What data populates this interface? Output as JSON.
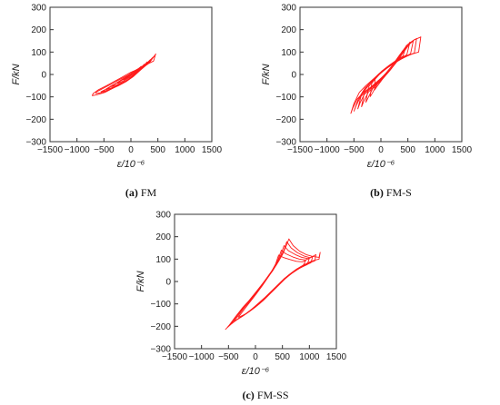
{
  "figure": {
    "captions": [
      {
        "letter": "(a)",
        "text": " FM"
      },
      {
        "letter": "(b)",
        "text": " FM-S"
      },
      {
        "letter": "(c)",
        "text": " FM-SS"
      }
    ]
  },
  "chart_data": [
    {
      "type": "line",
      "title": "",
      "caption": "(a) FM",
      "xlabel": "ε/10⁻⁶",
      "ylabel": "F/kN",
      "xlim": [
        -1500,
        1500
      ],
      "ylim": [
        -300,
        300
      ],
      "xticks": [
        "−1500",
        "−1000",
        "−500",
        "0",
        "500",
        "1000",
        "1500"
      ],
      "yticks": [
        "300",
        "200",
        "100",
        "0",
        "−100",
        "−200",
        "−300"
      ],
      "color": "#ff1a1a",
      "series": [
        {
          "x": [
            -720,
            -620,
            -480,
            -340,
            -200,
            -60,
            60,
            200,
            330,
            430,
            460,
            420,
            300,
            150,
            0,
            -150,
            -300,
            -450,
            -600,
            -700,
            -720
          ],
          "y": [
            -95,
            -90,
            -80,
            -62,
            -45,
            -25,
            -2,
            30,
            55,
            80,
            92,
            60,
            45,
            25,
            10,
            -10,
            -30,
            -50,
            -68,
            -85,
            -95
          ]
        },
        {
          "x": [
            -650,
            -520,
            -380,
            -230,
            -90,
            40,
            170,
            300,
            400,
            430,
            360,
            220,
            80,
            -70,
            -230,
            -380,
            -520,
            -640,
            -650
          ],
          "y": [
            -85,
            -80,
            -66,
            -50,
            -32,
            -10,
            18,
            45,
            72,
            82,
            58,
            38,
            18,
            -5,
            -25,
            -45,
            -63,
            -78,
            -85
          ]
        },
        {
          "x": [
            -560,
            -430,
            -300,
            -160,
            -30,
            90,
            220,
            340,
            400,
            350,
            230,
            100,
            -40,
            -190,
            -340,
            -480,
            -560
          ],
          "y": [
            -78,
            -70,
            -56,
            -40,
            -20,
            5,
            32,
            60,
            75,
            55,
            34,
            15,
            -8,
            -28,
            -48,
            -68,
            -78
          ]
        },
        {
          "x": [
            -460,
            -340,
            -210,
            -80,
            40,
            170,
            290,
            360,
            310,
            190,
            60,
            -80,
            -230,
            -370,
            -460
          ],
          "y": [
            -68,
            -58,
            -44,
            -28,
            -6,
            22,
            50,
            66,
            46,
            28,
            8,
            -14,
            -34,
            -54,
            -68
          ]
        },
        {
          "x": [
            -360,
            -240,
            -110,
            20,
            140,
            250,
            300,
            240,
            120,
            -10,
            -150,
            -280,
            -360
          ],
          "y": [
            -55,
            -44,
            -30,
            -12,
            14,
            42,
            56,
            36,
            20,
            0,
            -20,
            -40,
            -55
          ]
        },
        {
          "x": [
            -250,
            -130,
            0,
            120,
            220,
            250,
            170,
            50,
            -70,
            -190,
            -250
          ],
          "y": [
            -40,
            -28,
            -10,
            14,
            38,
            46,
            26,
            8,
            -10,
            -28,
            -40
          ]
        },
        {
          "x": [
            -140,
            -40,
            70,
            160,
            190,
            110,
            0,
            -100,
            -140
          ],
          "y": [
            -25,
            -12,
            8,
            30,
            36,
            18,
            0,
            -16,
            -25
          ]
        }
      ]
    },
    {
      "type": "line",
      "title": "",
      "caption": "(b) FM-S",
      "xlabel": "ε/10⁻⁶",
      "ylabel": "F/kN",
      "xlim": [
        -1500,
        1500
      ],
      "ylim": [
        -300,
        300
      ],
      "xticks": [
        "−1500",
        "−1000",
        "−500",
        "0",
        "500",
        "1000",
        "1500"
      ],
      "yticks": [
        "300",
        "200",
        "100",
        "0",
        "−100",
        "−200",
        "−300"
      ],
      "color": "#ff1a1a",
      "series": [
        {
          "x": [
            -560,
            -520,
            -440,
            -320,
            -180,
            -60,
            60,
            180,
            330,
            480,
            620,
            720,
            740,
            700,
            560,
            420,
            280,
            140,
            0,
            -140,
            -280,
            -400,
            -500,
            -560
          ],
          "y": [
            -175,
            -150,
            -110,
            -80,
            -55,
            -30,
            -5,
            30,
            80,
            130,
            155,
            165,
            168,
            100,
            90,
            75,
            55,
            35,
            10,
            -20,
            -50,
            -80,
            -130,
            -175
          ]
        },
        {
          "x": [
            -500,
            -460,
            -380,
            -260,
            -130,
            -20,
            90,
            210,
            350,
            490,
            600,
            660,
            620,
            500,
            370,
            230,
            100,
            -30,
            -170,
            -300,
            -420,
            -500
          ],
          "y": [
            -165,
            -140,
            -100,
            -72,
            -48,
            -22,
            5,
            40,
            88,
            132,
            152,
            160,
            96,
            84,
            68,
            48,
            26,
            0,
            -30,
            -62,
            -110,
            -165
          ]
        },
        {
          "x": [
            -430,
            -390,
            -310,
            -190,
            -70,
            40,
            150,
            280,
            410,
            530,
            600,
            550,
            430,
            300,
            160,
            30,
            -100,
            -240,
            -360,
            -430
          ],
          "y": [
            -155,
            -128,
            -90,
            -62,
            -38,
            -12,
            15,
            52,
            96,
            135,
            150,
            92,
            78,
            60,
            38,
            14,
            -16,
            -48,
            -90,
            -155
          ]
        },
        {
          "x": [
            -360,
            -310,
            -230,
            -110,
            0,
            110,
            230,
            360,
            480,
            540,
            480,
            360,
            230,
            90,
            -40,
            -180,
            -300,
            -360
          ],
          "y": [
            -145,
            -115,
            -78,
            -50,
            -24,
            5,
            38,
            80,
            125,
            145,
            88,
            72,
            52,
            28,
            2,
            -32,
            -72,
            -145
          ]
        },
        {
          "x": [
            -280,
            -230,
            -150,
            -40,
            70,
            180,
            300,
            420,
            470,
            410,
            290,
            160,
            20,
            -110,
            -230,
            -280
          ],
          "y": [
            -125,
            -100,
            -62,
            -36,
            -8,
            22,
            60,
            105,
            128,
            82,
            64,
            42,
            16,
            -16,
            -56,
            -125
          ]
        },
        {
          "x": [
            -200,
            -150,
            -70,
            30,
            140,
            250,
            360,
            400,
            330,
            210,
            80,
            -50,
            -170,
            -200
          ],
          "y": [
            -100,
            -80,
            -44,
            -18,
            10,
            44,
            85,
            105,
            70,
            50,
            26,
            -2,
            -40,
            -100
          ]
        },
        {
          "x": [
            -120,
            -60,
            20,
            110,
            210,
            300,
            330,
            250,
            130,
            0,
            -110,
            -120
          ],
          "y": [
            -70,
            -50,
            -24,
            2,
            32,
            66,
            80,
            52,
            32,
            8,
            -22,
            -70
          ]
        }
      ]
    },
    {
      "type": "line",
      "title": "",
      "caption": "(c) FM-SS",
      "xlabel": "ε/10⁻⁶",
      "ylabel": "F/kN",
      "xlim": [
        -1500,
        1500
      ],
      "ylim": [
        -300,
        300
      ],
      "xticks": [
        "−1500",
        "−1000",
        "−500",
        "0",
        "500",
        "1000",
        "1500"
      ],
      "yticks": [
        "300",
        "200",
        "100",
        "0",
        "−100",
        "−200",
        "−300"
      ],
      "color": "#ff1a1a",
      "series": [
        {
          "x": [
            -560,
            -500,
            -380,
            -250,
            -120,
            0,
            130,
            260,
            390,
            500,
            580,
            620,
            700,
            820,
            940,
            1060,
            1180,
            1200,
            1180,
            1050,
            900,
            760,
            620,
            480,
            330,
            180,
            40,
            -100,
            -240,
            -380,
            -500,
            -560
          ],
          "y": [
            -215,
            -200,
            -160,
            -120,
            -85,
            -50,
            -10,
            30,
            75,
            120,
            165,
            190,
            160,
            135,
            120,
            112,
            108,
            130,
            100,
            92,
            75,
            55,
            30,
            0,
            -35,
            -70,
            -100,
            -130,
            -155,
            -175,
            -200,
            -215
          ]
        },
        {
          "x": [
            -520,
            -450,
            -330,
            -200,
            -70,
            60,
            190,
            320,
            440,
            530,
            580,
            660,
            780,
            900,
            1020,
            1120,
            1100,
            980,
            830,
            690,
            540,
            390,
            240,
            90,
            -50,
            -190,
            -330,
            -450,
            -520
          ],
          "y": [
            -205,
            -186,
            -148,
            -110,
            -74,
            -36,
            6,
            48,
            95,
            140,
            178,
            150,
            128,
            114,
            106,
            120,
            92,
            82,
            64,
            42,
            14,
            -22,
            -58,
            -92,
            -120,
            -146,
            -168,
            -190,
            -205
          ]
        },
        {
          "x": [
            -470,
            -400,
            -280,
            -150,
            -20,
            110,
            240,
            370,
            470,
            530,
            610,
            740,
            860,
            980,
            1060,
            1030,
            900,
            750,
            600,
            450,
            300,
            150,
            0,
            -140,
            -280,
            -400,
            -470
          ],
          "y": [
            -192,
            -172,
            -134,
            -96,
            -58,
            -18,
            26,
            70,
            118,
            160,
            138,
            120,
            108,
            102,
            112,
            84,
            70,
            50,
            24,
            -10,
            -46,
            -82,
            -112,
            -138,
            -160,
            -180,
            -192
          ]
        },
        {
          "x": [
            -400,
            -330,
            -210,
            -80,
            50,
            180,
            310,
            420,
            480,
            560,
            690,
            810,
            930,
            1000,
            960,
            820,
            670,
            520,
            370,
            220,
            70,
            -80,
            -220,
            -340,
            -400
          ],
          "y": [
            -178,
            -156,
            -118,
            -80,
            -40,
            4,
            50,
            98,
            140,
            124,
            110,
            100,
            96,
            104,
            76,
            60,
            36,
            6,
            -30,
            -66,
            -100,
            -128,
            -152,
            -170,
            -178
          ]
        },
        {
          "x": [
            -320,
            -250,
            -130,
            0,
            130,
            260,
            370,
            430,
            510,
            640,
            760,
            870,
            930,
            880,
            740,
            590,
            440,
            290,
            140,
            -10,
            -160,
            -280,
            -320
          ],
          "y": [
            -160,
            -138,
            -100,
            -60,
            -18,
            28,
            76,
            118,
            108,
            98,
            90,
            88,
            94,
            68,
            50,
            22,
            -14,
            -50,
            -86,
            -116,
            -142,
            -156,
            -160
          ]
        }
      ]
    }
  ]
}
